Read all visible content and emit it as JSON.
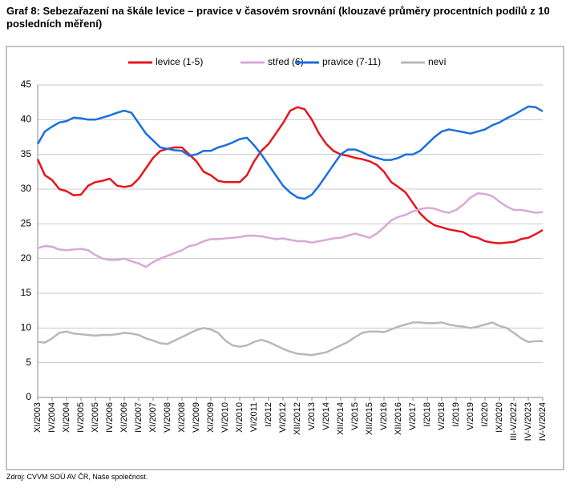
{
  "chart_data": {
    "type": "line",
    "title": "Graf 8: Sebezařazení na škále levice – pravice v časovém srovnání (klouzavé průměry procentních podílů z 10 posledních měření)",
    "source": "Zdroj: CVVM SOÚ AV ČR, Naše společnost.",
    "categories": [
      "XI/2003",
      null,
      "IV/2004",
      null,
      "XI/2004",
      null,
      "IV/2005",
      null,
      "XI/2005",
      null,
      "IV/2006",
      null,
      "XI/2006",
      null,
      "IV/2007",
      null,
      "XI/2007",
      null,
      "VI/2008",
      null,
      "XI/2008",
      null,
      "VI/2009",
      null,
      "XI/2009",
      null,
      "VI/2010",
      null,
      "XI/2010",
      null,
      "VI/2011",
      null,
      "I/2012",
      null,
      "VI/2012",
      null,
      "XII/2012",
      null,
      "V/2013",
      null,
      "V/2014",
      null,
      "XII/2014",
      null,
      "V/2015",
      null,
      "XII/2015",
      null,
      "V/2016",
      null,
      "XII/2016",
      null,
      "V/2017",
      null,
      "I/2018",
      null,
      "V/2018",
      null,
      "I/2019",
      null,
      "V/2019",
      null,
      "I/2020",
      null,
      "IX/2020",
      null,
      "III-V/2022",
      null,
      "IV-V/2023",
      null,
      "IV-V/2024"
    ],
    "series": [
      {
        "name": "levice (1-5)",
        "color": "#e8141c",
        "values": [
          34.3,
          32,
          31.3,
          30,
          29.7,
          29.1,
          29.2,
          30.5,
          31,
          31.2,
          31.5,
          30.5,
          30.3,
          30.5,
          31.5,
          33,
          34.5,
          35.5,
          35.8,
          36,
          36,
          35,
          34,
          32.5,
          32,
          31.2,
          31,
          31,
          31,
          32,
          34,
          35.5,
          36.5,
          38,
          39.5,
          41.3,
          41.8,
          41.5,
          40,
          38,
          36.5,
          35.5,
          35,
          34.8,
          34.5,
          34.3,
          34,
          33.5,
          32.5,
          31,
          30.3,
          29.5,
          28,
          26.5,
          25.5,
          24.8,
          24.5,
          24.2,
          24,
          23.8,
          23.2,
          23,
          22.5,
          22.3,
          22.2,
          22.3,
          22.4,
          22.8,
          23,
          23.5,
          24.1
        ]
      },
      {
        "name": "střed (6)",
        "color": "#d8a8d8",
        "values": [
          21.5,
          21.8,
          21.7,
          21.3,
          21.2,
          21.3,
          21.4,
          21.2,
          20.5,
          20,
          19.8,
          19.8,
          20,
          19.6,
          19.3,
          18.8,
          19.5,
          20,
          20.4,
          20.8,
          21.2,
          21.8,
          22,
          22.5,
          22.8,
          22.8,
          22.9,
          23,
          23.1,
          23.3,
          23.3,
          23.2,
          23,
          22.8,
          22.9,
          22.7,
          22.5,
          22.5,
          22.3,
          22.5,
          22.7,
          22.9,
          23,
          23.3,
          23.6,
          23.3,
          23,
          23.6,
          24.5,
          25.5,
          26,
          26.3,
          26.8,
          27.1,
          27.3,
          27.2,
          26.8,
          26.6,
          27,
          27.8,
          28.8,
          29.4,
          29.3,
          29,
          28.2,
          27.5,
          27,
          27,
          26.8,
          26.6,
          26.7
        ]
      },
      {
        "name": "pravice (7-11)",
        "color": "#1a6fe0",
        "values": [
          36.5,
          38.3,
          39,
          39.6,
          39.8,
          40.3,
          40.2,
          40,
          40,
          40.3,
          40.6,
          41,
          41.3,
          41,
          39.5,
          38,
          37,
          36,
          35.8,
          35.6,
          35.5,
          34.8,
          35,
          35.5,
          35.5,
          36,
          36.3,
          36.7,
          37.2,
          37.4,
          36.3,
          35,
          33.5,
          32,
          30.5,
          29.5,
          28.8,
          28.6,
          29.2,
          30.5,
          32,
          33.5,
          35,
          35.7,
          35.7,
          35.3,
          34.8,
          34.5,
          34.2,
          34.2,
          34.5,
          35,
          35,
          35.5,
          36.5,
          37.5,
          38.3,
          38.6,
          38.4,
          38.2,
          38,
          38.3,
          38.6,
          39.2,
          39.6,
          40.2,
          40.7,
          41.3,
          41.9,
          41.8,
          41.2
        ]
      },
      {
        "name": "neví",
        "color": "#b8b8b8",
        "values": [
          8,
          7.9,
          8.5,
          9.3,
          9.5,
          9.2,
          9.1,
          9,
          8.9,
          9,
          9,
          9.1,
          9.3,
          9.2,
          9,
          8.5,
          8.2,
          7.8,
          7.7,
          8.2,
          8.7,
          9.2,
          9.7,
          10,
          9.8,
          9.3,
          8.2,
          7.5,
          7.3,
          7.5,
          8,
          8.3,
          8,
          7.5,
          7,
          6.6,
          6.3,
          6.2,
          6.1,
          6.3,
          6.5,
          7,
          7.5,
          8,
          8.7,
          9.3,
          9.5,
          9.5,
          9.4,
          9.8,
          10.2,
          10.5,
          10.8,
          10.8,
          10.7,
          10.7,
          10.8,
          10.5,
          10.3,
          10.2,
          10,
          10.2,
          10.5,
          10.8,
          10.3,
          10,
          9.3,
          8.5,
          8,
          8.1,
          8.1
        ]
      }
    ],
    "ylim": [
      0,
      45
    ],
    "yticks": [
      0,
      5,
      10,
      15,
      20,
      25,
      30,
      35,
      40,
      45
    ],
    "grid": true,
    "legend": "top"
  }
}
